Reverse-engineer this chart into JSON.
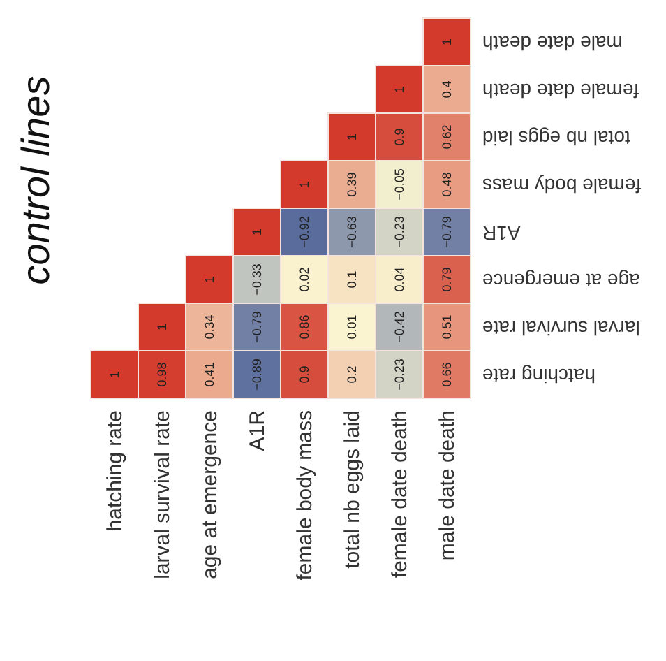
{
  "chart_data": {
    "type": "heatmap",
    "title": "control lines",
    "categories": [
      "hatching rate",
      "larval survival rate",
      "age at emergence",
      "A1R",
      "female body mass",
      "total nb eggs laid",
      "female date death",
      "male date death"
    ],
    "y_categories": [
      "male date death",
      "female date death",
      "total nb eggs laid",
      "female body mass",
      "A1R",
      "age at emergence",
      "larval survival rate",
      "hatching rate"
    ],
    "cells": [
      [
        null,
        null,
        null,
        null,
        null,
        null,
        null,
        1
      ],
      [
        null,
        null,
        null,
        null,
        null,
        null,
        1,
        0.4
      ],
      [
        null,
        null,
        null,
        null,
        null,
        1,
        0.9,
        0.62
      ],
      [
        null,
        null,
        null,
        null,
        1,
        0.39,
        -0.05,
        0.48
      ],
      [
        null,
        null,
        null,
        1,
        -0.92,
        -0.63,
        -0.23,
        -0.79
      ],
      [
        null,
        null,
        1,
        -0.33,
        0.02,
        0.1,
        0.04,
        0.79
      ],
      [
        null,
        1,
        0.34,
        -0.79,
        0.86,
        0.01,
        -0.42,
        0.51
      ],
      [
        1,
        0.98,
        0.41,
        -0.89,
        0.9,
        0.2,
        -0.23,
        0.66
      ]
    ],
    "data_labels": true
  }
}
